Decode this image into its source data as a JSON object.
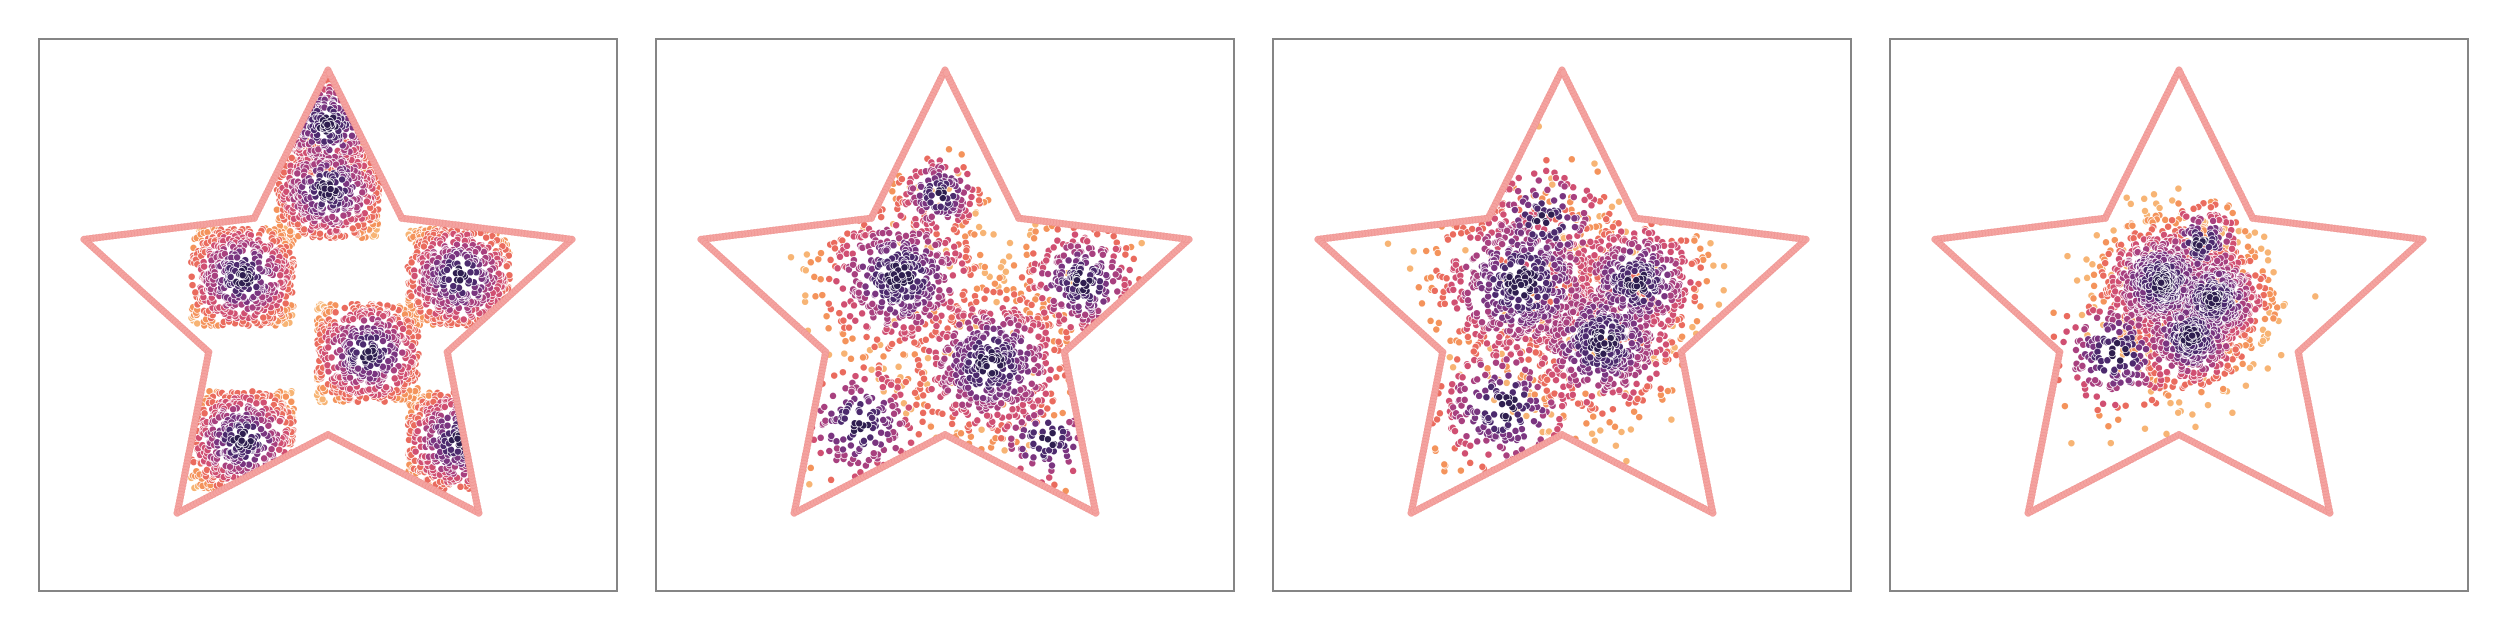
{
  "figure": {
    "panel_count": 4,
    "colors": {
      "frame": "#858585",
      "outline": "#f4a3a0",
      "outline_edge": "#ee8f8c",
      "point_edge": "#ffffff",
      "scale": [
        "#2e1e4f",
        "#4c2a6e",
        "#7a3580",
        "#a8407f",
        "#d04f72",
        "#ea6b5e",
        "#f4935b",
        "#f7b474"
      ]
    }
  },
  "chart_data": [
    {
      "type": "scatter",
      "title": "",
      "xlabel": "",
      "ylabel": "",
      "grid": false,
      "axes_visible": false,
      "xlim": [
        0,
        1
      ],
      "ylim": [
        0,
        1
      ],
      "boundary": {
        "shape": "star",
        "points": 5,
        "outer_radius": 0.45,
        "inner_radius": 0.22,
        "center": [
          0.5,
          0.5
        ]
      },
      "series": [
        {
          "role": "checkerboard-cells",
          "cells": [
            [
              0.35,
              0.57
            ],
            [
              0.57,
              0.43
            ],
            [
              0.73,
              0.57
            ],
            [
              0.5,
              0.73
            ],
            [
              0.35,
              0.27
            ],
            [
              0.73,
              0.27
            ],
            [
              0.5,
              0.85
            ]
          ],
          "cell_size": 0.18
        }
      ]
    },
    {
      "type": "scatter",
      "title": "",
      "xlabel": "",
      "ylabel": "",
      "grid": false,
      "axes_visible": false,
      "xlim": [
        0,
        1
      ],
      "ylim": [
        0,
        1
      ],
      "boundary": {
        "shape": "star",
        "points": 5,
        "outer_radius": 0.45,
        "inner_radius": 0.22,
        "center": [
          0.5,
          0.5
        ]
      },
      "series": [
        {
          "role": "cluster",
          "center": [
            0.42,
            0.57
          ],
          "spread": 0.07,
          "points": 500
        },
        {
          "role": "cluster",
          "center": [
            0.58,
            0.41
          ],
          "spread": 0.07,
          "points": 550
        },
        {
          "role": "cluster",
          "center": [
            0.74,
            0.56
          ],
          "spread": 0.055,
          "points": 300
        },
        {
          "role": "cluster",
          "center": [
            0.35,
            0.3
          ],
          "spread": 0.06,
          "points": 200
        },
        {
          "role": "cluster",
          "center": [
            0.49,
            0.72
          ],
          "spread": 0.04,
          "points": 150
        },
        {
          "role": "cluster",
          "center": [
            0.68,
            0.27
          ],
          "spread": 0.05,
          "points": 100
        }
      ]
    },
    {
      "type": "scatter",
      "title": "",
      "xlabel": "",
      "ylabel": "",
      "grid": false,
      "axes_visible": false,
      "xlim": [
        0,
        1
      ],
      "ylim": [
        0,
        1
      ],
      "boundary": {
        "shape": "star",
        "points": 5,
        "outer_radius": 0.45,
        "inner_radius": 0.22,
        "center": [
          0.5,
          0.5
        ]
      },
      "series": [
        {
          "role": "cluster",
          "center": [
            0.43,
            0.56
          ],
          "spread": 0.08,
          "points": 700
        },
        {
          "role": "cluster",
          "center": [
            0.57,
            0.45
          ],
          "spread": 0.07,
          "points": 600
        },
        {
          "role": "cluster",
          "center": [
            0.63,
            0.56
          ],
          "spread": 0.06,
          "points": 450
        },
        {
          "role": "cluster",
          "center": [
            0.4,
            0.33
          ],
          "spread": 0.07,
          "points": 250
        },
        {
          "role": "cluster",
          "center": [
            0.47,
            0.67
          ],
          "spread": 0.06,
          "points": 150
        }
      ]
    },
    {
      "type": "scatter",
      "title": "",
      "xlabel": "",
      "ylabel": "",
      "grid": false,
      "axes_visible": false,
      "xlim": [
        0,
        1
      ],
      "ylim": [
        0,
        1
      ],
      "boundary": {
        "shape": "star",
        "points": 5,
        "outer_radius": 0.45,
        "inner_radius": 0.22,
        "center": [
          0.5,
          0.5
        ]
      },
      "series": [
        {
          "role": "cluster",
          "center": [
            0.47,
            0.56
          ],
          "spread": 0.055,
          "points": 700
        },
        {
          "role": "cluster",
          "center": [
            0.56,
            0.53
          ],
          "spread": 0.05,
          "points": 600
        },
        {
          "role": "cluster",
          "center": [
            0.52,
            0.46
          ],
          "spread": 0.05,
          "points": 450
        },
        {
          "role": "cluster",
          "center": [
            0.39,
            0.43
          ],
          "spread": 0.06,
          "points": 200
        },
        {
          "role": "cluster",
          "center": [
            0.54,
            0.63
          ],
          "spread": 0.04,
          "points": 150
        }
      ]
    }
  ]
}
